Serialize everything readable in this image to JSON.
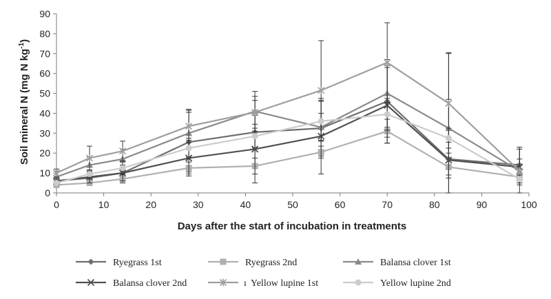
{
  "chart_data": {
    "type": "line",
    "xlabel": "Days after the start of incubation in treatments",
    "ylabel": "Soil mineral N (mg N kg-1)",
    "ylabel_main": "Soil mineral N (mg N kg",
    "ylabel_sup": "-1",
    "ylabel_tail": ")",
    "xlim": [
      0,
      100
    ],
    "ylim": [
      0,
      90
    ],
    "x_ticks": [
      0,
      10,
      20,
      30,
      40,
      50,
      60,
      70,
      80,
      90,
      100
    ],
    "y_ticks": [
      0,
      10,
      20,
      30,
      40,
      50,
      60,
      70,
      80,
      90
    ],
    "grid": "none",
    "legend_position": "bottom",
    "series": [
      {
        "name": "Ryegrass 1st",
        "color": "#6e6e6e",
        "marker": "diamond",
        "x": [
          0,
          7,
          14,
          28,
          42,
          56,
          70,
          83,
          98
        ],
        "y": [
          6,
          7.5,
          10,
          25.5,
          30.5,
          32.5,
          46,
          17,
          14
        ],
        "err": [
          2,
          3,
          4,
          15,
          16,
          14,
          18,
          30,
          8
        ]
      },
      {
        "name": "Ryegrass 2nd",
        "color": "#b0b0b0",
        "marker": "square",
        "x": [
          0,
          7,
          14,
          28,
          42,
          56,
          70,
          83,
          98
        ],
        "y": [
          4,
          5,
          7,
          12.5,
          13.5,
          20.5,
          31,
          13,
          8
        ],
        "err": [
          1,
          1,
          2,
          3,
          4,
          3,
          6,
          4,
          2
        ]
      },
      {
        "name": "Balansa clover 1st",
        "color": "#8a8a8a",
        "marker": "triangle",
        "x": [
          0,
          7,
          14,
          28,
          42,
          56,
          70,
          83,
          98
        ],
        "y": [
          8,
          14,
          17,
          30,
          41,
          33,
          50,
          32.5,
          11
        ],
        "err": [
          3,
          4,
          5,
          12,
          10,
          7,
          17,
          38,
          6
        ]
      },
      {
        "name": "Balansa clover 2nd",
        "color": "#505050",
        "marker": "x",
        "x": [
          0,
          7,
          14,
          28,
          42,
          56,
          70,
          83,
          98
        ],
        "y": [
          6,
          8,
          10,
          17.5,
          22,
          28.5,
          44,
          16.5,
          13
        ],
        "err": [
          2,
          3,
          4,
          9,
          17,
          19,
          19,
          9,
          9
        ]
      },
      {
        "name": "Yellow lupine 1st",
        "color": "#9e9e9e",
        "marker": "star",
        "x": [
          0,
          7,
          14,
          28,
          42,
          56,
          70,
          83,
          98
        ],
        "y": [
          10,
          17.5,
          21,
          33.5,
          40.5,
          51.5,
          65.5,
          45,
          11
        ],
        "err": [
          2,
          6,
          5,
          8,
          8,
          25,
          20,
          25,
          12
        ]
      },
      {
        "name": "Yellow lupine 2nd",
        "color": "#cccccc",
        "marker": "circle",
        "x": [
          0,
          7,
          14,
          28,
          42,
          56,
          70,
          83,
          98
        ],
        "y": [
          5,
          9.5,
          12.5,
          22.5,
          28.5,
          36,
          39.5,
          27.5,
          7
        ],
        "err": [
          1,
          2,
          3,
          5,
          6,
          10,
          8,
          5,
          2
        ]
      }
    ],
    "legend_layout": [
      {
        "series": 0,
        "row": 0,
        "col": 0
      },
      {
        "series": 1,
        "row": 0,
        "col": 1
      },
      {
        "series": 2,
        "row": 0,
        "col": 2
      },
      {
        "series": 3,
        "row": 1,
        "col": 0
      },
      {
        "series": 4,
        "row": 1,
        "col": 1
      },
      {
        "series": 5,
        "row": 1,
        "col": 2
      }
    ],
    "legend_stray_mark": "ı"
  }
}
